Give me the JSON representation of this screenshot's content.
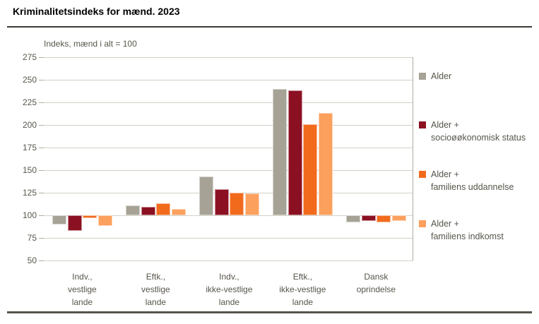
{
  "header": {
    "title": "Kriminalitetsindeks for mænd. 2023",
    "subtitle": "Indeks, mænd i alt = 100"
  },
  "colors": {
    "bar_alder": "#a6a296",
    "bar_socio": "#8b1122",
    "bar_uddannelse": "#f26b1d",
    "bar_indkomst": "#fca05e",
    "text": "#57554b",
    "grid": "#d2d1c8",
    "axis_border": "#aeada3",
    "title_rule": "#3c3a33",
    "bottom_rule": "#56544a"
  },
  "chart_data": {
    "type": "bar",
    "title": "Kriminalitetsindeks for mænd. 2023",
    "subtitle": "Indeks, mænd i alt = 100",
    "baseline": 100,
    "ylim": [
      50,
      275
    ],
    "yticks": [
      275,
      250,
      225,
      200,
      175,
      150,
      125,
      100,
      75,
      50
    ],
    "grid": true,
    "legend_position": "right",
    "categories": [
      "Indv.,\nvestlige\nlande",
      "Eftk.,\nvestlige\nlande",
      "Indv.,\nikke-vestlige\nlande",
      "Eftk.,\nikke-vestlige\nlande",
      "Dansk\noprindelse"
    ],
    "series": [
      {
        "name": "Alder",
        "color": "#a6a296",
        "values": [
          90,
          111,
          143,
          240,
          92
        ]
      },
      {
        "name": "Alder +\nsocioøøkonomisk status",
        "color": "#8b1122",
        "values": [
          83,
          109,
          129,
          238,
          94
        ]
      },
      {
        "name": "Alder +\nfamiliens uddannelse",
        "color": "#f26b1d",
        "values": [
          97,
          113,
          125,
          201,
          92
        ]
      },
      {
        "name": "Alder +\nfamiliens indkomst",
        "color": "#fca05e",
        "values": [
          88,
          107,
          124,
          213,
          94
        ]
      }
    ]
  }
}
